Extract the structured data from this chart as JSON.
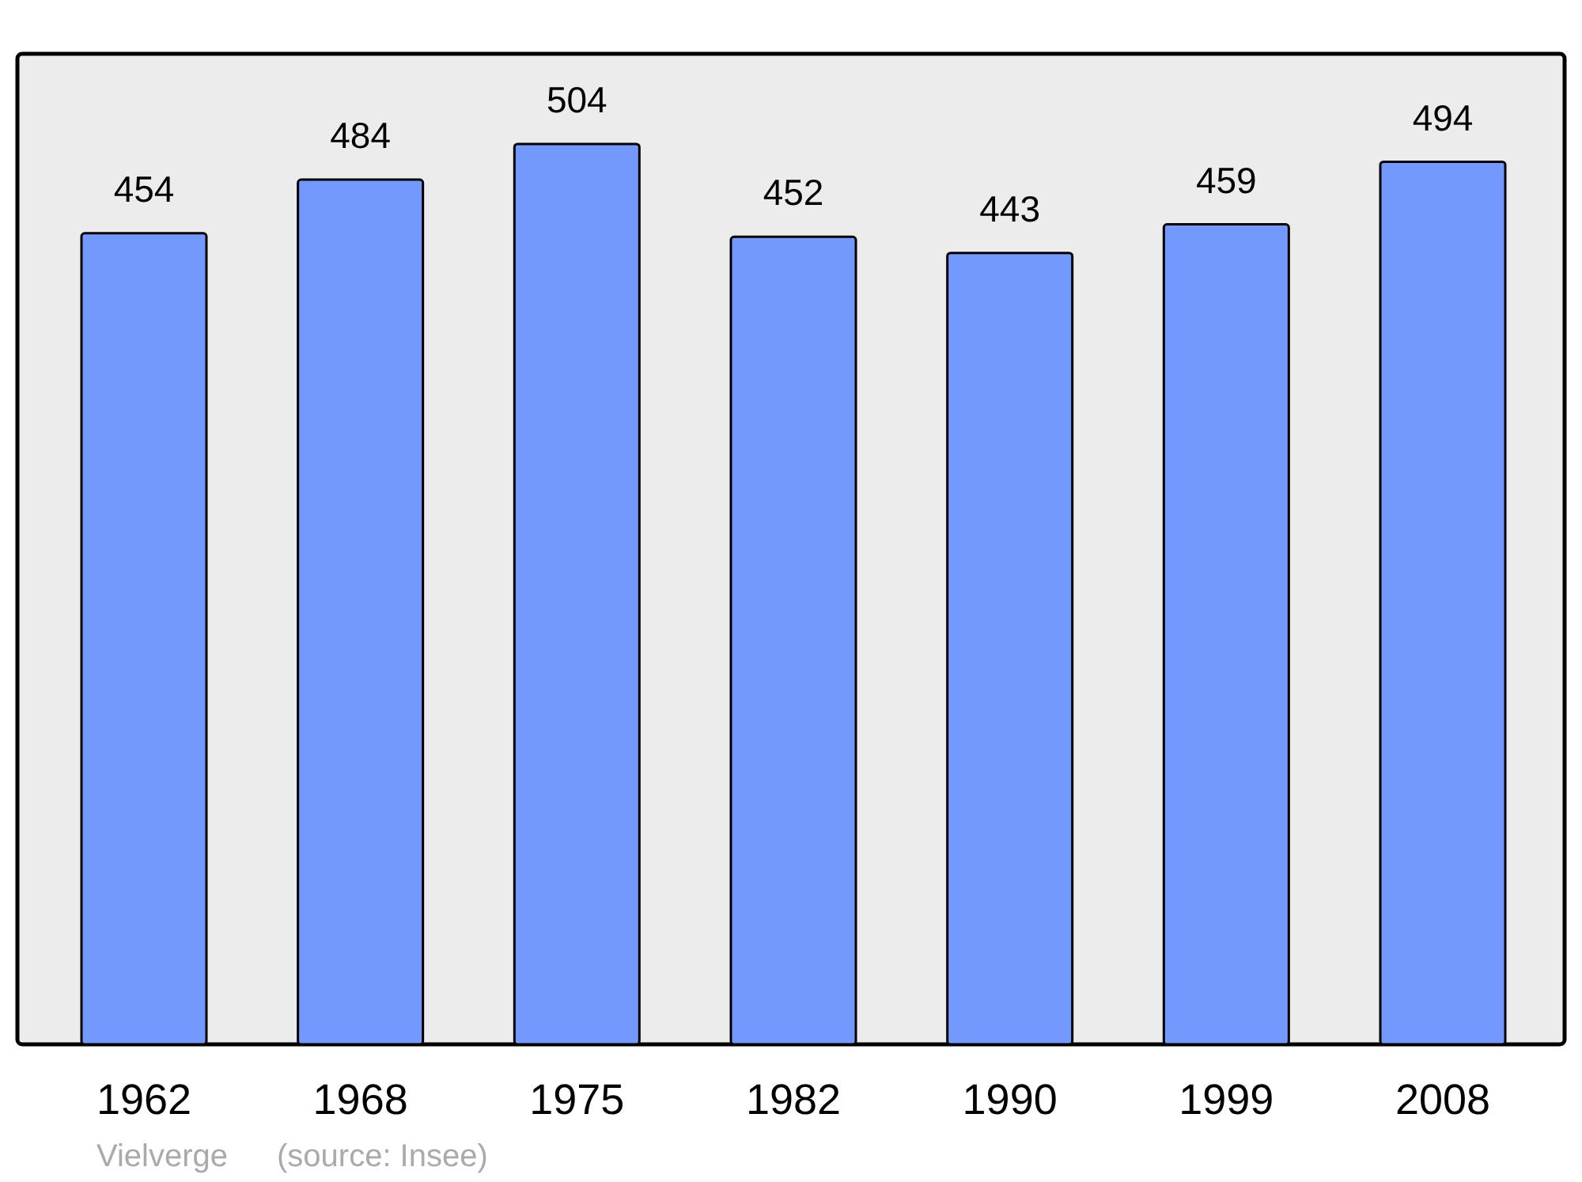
{
  "chart_data": {
    "type": "bar",
    "categories": [
      "1962",
      "1968",
      "1975",
      "1982",
      "1990",
      "1999",
      "2008"
    ],
    "values": [
      454,
      484,
      504,
      452,
      443,
      459,
      494
    ],
    "color": "#7399ff",
    "data_labels": true,
    "annotations": [
      "Vielverge",
      "(source: Insee)"
    ]
  }
}
